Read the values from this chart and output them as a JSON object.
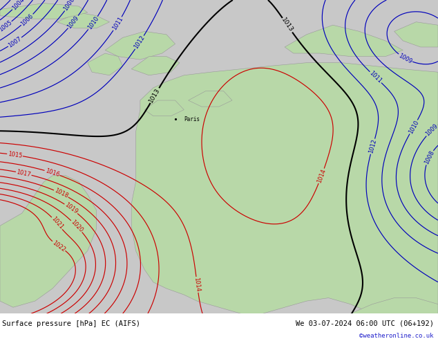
{
  "title_left": "Surface pressure [hPa] EC (AIFS)",
  "title_right": "We 03-07-2024 06:00 UTC (06+192)",
  "copyright": "©weatheronline.co.uk",
  "bg_color": "#c8c8c8",
  "land_color": "#b8d8a8",
  "coast_color": "#999999",
  "contour_color_blue": "#0000bb",
  "contour_color_red": "#cc0000",
  "contour_color_black": "#000000",
  "label_fontsize": 6,
  "title_fontsize": 7.5,
  "figsize": [
    6.34,
    4.9
  ],
  "dpi": 100,
  "bar_color": "#ffffff"
}
